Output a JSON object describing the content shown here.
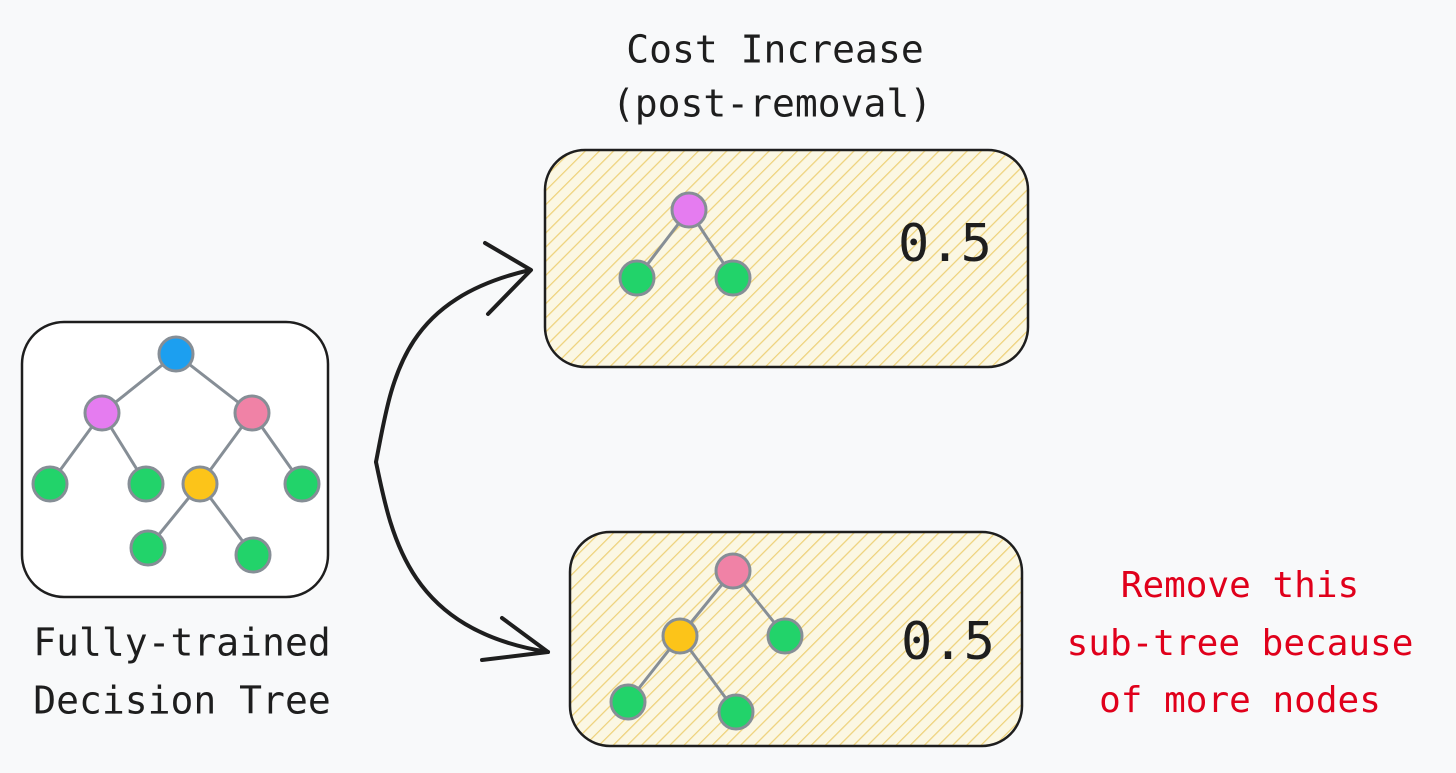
{
  "header": {
    "title_lines": [
      "Cost Increase",
      "(post-removal)"
    ]
  },
  "full_tree": {
    "label_lines": [
      "Fully-trained",
      "Decision Tree"
    ]
  },
  "subtrees": [
    {
      "cost": 0.5
    },
    {
      "cost": 0.5,
      "note_lines": [
        "Remove this",
        "sub-tree because",
        "of more nodes"
      ]
    }
  ]
}
